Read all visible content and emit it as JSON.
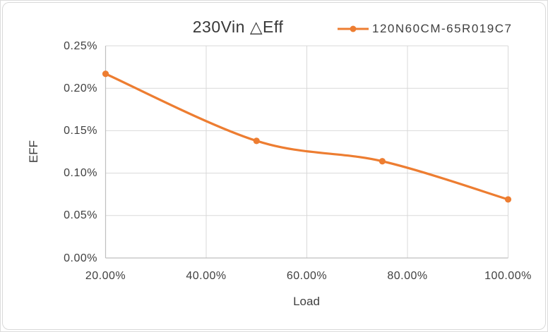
{
  "window": {
    "background": "#ffffff",
    "frame_border_color": "#d9d9d9"
  },
  "chart_data": {
    "type": "line",
    "title": "230Vin △Eff",
    "xlabel": "Load",
    "ylabel": "EFF",
    "xlim": [
      20,
      100
    ],
    "ylim": [
      0,
      0.25
    ],
    "x_unit": "%",
    "y_unit": "%",
    "grid": true,
    "smooth_line": true,
    "legend_position": "top-right",
    "x_ticks": {
      "values": [
        20,
        40,
        60,
        80,
        100
      ],
      "labels": [
        "20.00%",
        "40.00%",
        "60.00%",
        "80.00%",
        "100.00%"
      ]
    },
    "y_ticks": {
      "values": [
        0,
        0.05,
        0.1,
        0.15,
        0.2,
        0.25
      ],
      "labels": [
        "0.00%",
        "0.05%",
        "0.10%",
        "0.15%",
        "0.20%",
        "0.25%"
      ]
    },
    "series": [
      {
        "name": "120N60CM-65R019C7",
        "color": "#ED7D31",
        "marker": "circle",
        "x": [
          20,
          50,
          75,
          100
        ],
        "y": [
          0.217,
          0.138,
          0.114,
          0.069
        ]
      }
    ],
    "colors": {
      "gridline": "#d9d9d9",
      "axis_line": "#bfbfbf",
      "text": "#404040",
      "series": "#ED7D31"
    }
  }
}
